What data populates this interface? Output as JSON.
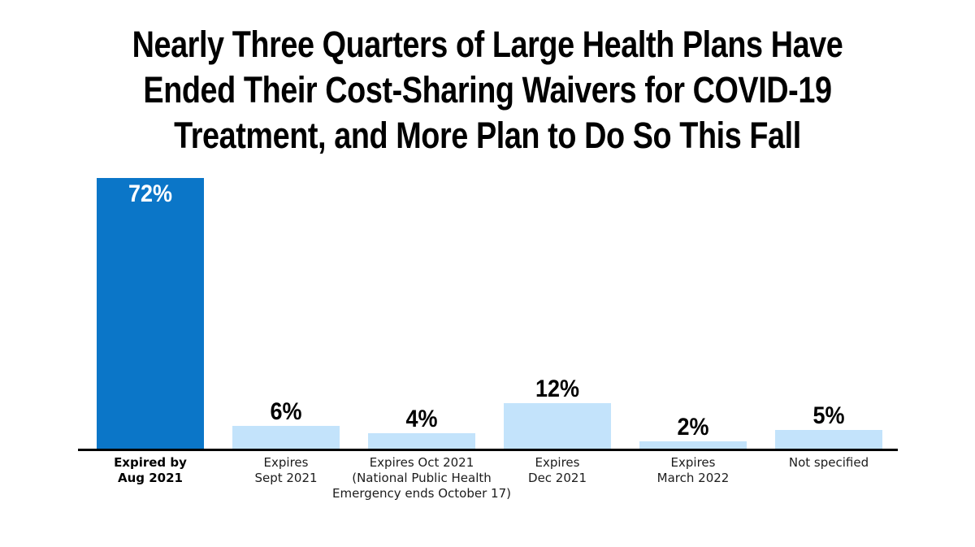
{
  "chart_data": {
    "type": "bar",
    "title": "Nearly Three Quarters of Large Health Plans Have Ended Their Cost-Sharing Waivers for COVID-19 Treatment, and More Plan to Do So This Fall",
    "title_lines": [
      "Nearly Three Quarters of Large Health Plans Have",
      "Ended Their Cost-Sharing Waivers for COVID-19",
      "Treatment, and More Plan to Do So This Fall"
    ],
    "categories": [
      "Expired by\nAug 2021",
      "Expires\nSept 2021",
      "Expires Oct 2021\n(National Public Health\nEmergency ends October 17)",
      "Expires\nDec 2021",
      "Expires\nMarch 2022",
      "Not specified"
    ],
    "values": [
      72,
      6,
      4,
      12,
      2,
      5
    ],
    "value_labels": [
      "72%",
      "6%",
      "4%",
      "12%",
      "2%",
      "5%"
    ],
    "bars": [
      {
        "id": "expired-aug-2021",
        "category": "Expired by\nAug 2021",
        "value": 72,
        "value_label": "72%",
        "highlight": true,
        "value_inside": true,
        "bold_label": true
      },
      {
        "id": "expires-sept-2021",
        "category": "Expires\nSept 2021",
        "value": 6,
        "value_label": "6%",
        "highlight": false,
        "value_inside": false,
        "bold_label": false
      },
      {
        "id": "expires-oct-2021",
        "category": "Expires Oct 2021\n(National Public Health\nEmergency ends October 17)",
        "value": 4,
        "value_label": "4%",
        "highlight": false,
        "value_inside": false,
        "bold_label": false
      },
      {
        "id": "expires-dec-2021",
        "category": "Expires\nDec 2021",
        "value": 12,
        "value_label": "12%",
        "highlight": false,
        "value_inside": false,
        "bold_label": false
      },
      {
        "id": "expires-march-2022",
        "category": "Expires\nMarch 2022",
        "value": 2,
        "value_label": "2%",
        "highlight": false,
        "value_inside": false,
        "bold_label": false
      },
      {
        "id": "not-specified",
        "category": "Not specified",
        "value": 5,
        "value_label": "5%",
        "highlight": false,
        "value_inside": false,
        "bold_label": false
      }
    ],
    "colors": {
      "highlight_bar": "#0b76c8",
      "default_bar": "#c3e3fb",
      "axis": "#000000",
      "title_text": "#000000",
      "value_label_text": "#000000",
      "value_label_inside_text": "#ffffff",
      "axis_label_text": "#1c1c1c",
      "background": "#ffffff"
    },
    "ylim": [
      0,
      78
    ],
    "grid": false,
    "legend": null,
    "y_axis_shown": false
  }
}
